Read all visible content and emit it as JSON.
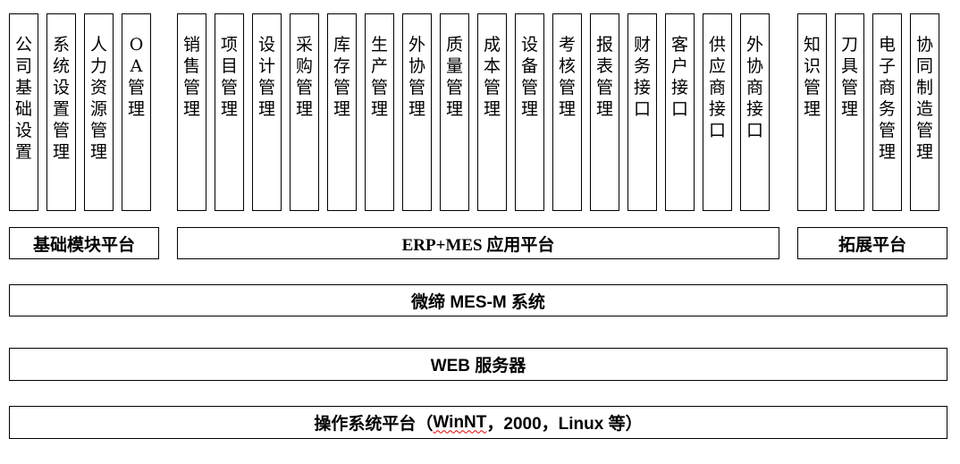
{
  "modules": {
    "basic": [
      "公司基础设置",
      "系统设置管理",
      "人力资源管理",
      "OA管理"
    ],
    "erp_mes": [
      "销售管理",
      "项目管理",
      "设计管理",
      "采购管理",
      "库存管理",
      "生产管理",
      "外协管理",
      "质量管理",
      "成本管理",
      "设备管理",
      "考核管理",
      "报表管理",
      "财务接口",
      "客户接口",
      "供应商接口",
      "外协商接口"
    ],
    "extension": [
      "知识管理",
      "刀具管理",
      "电子商务管理",
      "协同制造管理"
    ]
  },
  "platforms": {
    "basic": "基础模块平台",
    "erp_mes": "ERP+MES 应用平台",
    "extension": "拓展平台"
  },
  "layers": {
    "system": "微缔 MES-M 系统",
    "web": "WEB 服务器",
    "os_prefix": "操作系统平台（",
    "os_winnt": "WinNT",
    "os_suffix": "，2000，Linux 等）"
  }
}
